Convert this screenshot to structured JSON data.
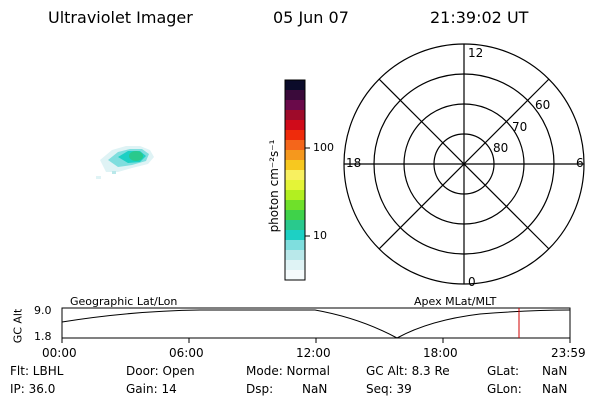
{
  "header": {
    "instrument": "Ultraviolet Imager",
    "date": "05 Jun 07",
    "time": "21:39:02 UT"
  },
  "colorbar": {
    "unit_label": "photon cm⁻²s⁻¹",
    "ticks": [
      "100",
      "10"
    ],
    "colors": [
      "#0b0b2a",
      "#3a0a3a",
      "#6a0a4a",
      "#9e0b2a",
      "#d00b1a",
      "#ef2b0b",
      "#f4661b",
      "#f5981d",
      "#f7c81f",
      "#f8f060",
      "#e4f437",
      "#b2ef20",
      "#6fe02a",
      "#3fd24a",
      "#29c98d",
      "#1dd0c4",
      "#7fdede",
      "#b9e8ea",
      "#dff3f5",
      "#f5fbfc"
    ]
  },
  "polar": {
    "mlt_labels": {
      "top": "12",
      "bottom": "0",
      "left": "18",
      "right": "6"
    },
    "lat_labels": [
      "60",
      "70",
      "80"
    ]
  },
  "timeline": {
    "panel_left_label": "Geographic Lat/Lon",
    "panel_right_label": "Apex MLat/MLT",
    "y_axis_label": "GC Alt",
    "y_ticks": [
      "9.0",
      "1.8"
    ],
    "x_ticks": [
      "00:00",
      "06:00",
      "12:00",
      "18:00",
      "23:59"
    ],
    "current_marker_color": "#d00000"
  },
  "status": {
    "flt": "Flt: LBHL",
    "ip": "IP: 36.0",
    "door": "Door: Open",
    "gain": "Gain: 14",
    "mode": "Mode: Normal",
    "dsp_label": "Dsp:",
    "dsp_value": "NaN",
    "gc_alt": "GC Alt: 8.3 Re",
    "seq": "Seq: 39",
    "glat_label": "GLat:",
    "glat_value": "NaN",
    "glon_label": "GLon:",
    "glon_value": "NaN"
  }
}
